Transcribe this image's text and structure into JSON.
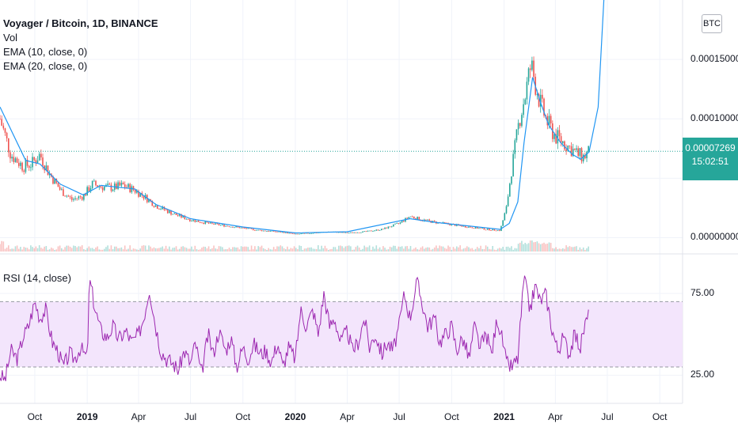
{
  "header": {
    "title": "Voyager / Bitcoin, 1D, BINANCE",
    "indicators": [
      "Vol",
      "EMA (10, close, 0)",
      "EMA (20, close, 0)"
    ]
  },
  "currency_button": "BTC",
  "price_tag": {
    "price": "0.00007269",
    "countdown": "15:02:51"
  },
  "rsi_label": "RSI (14, close)",
  "colors": {
    "up": "#26a69a",
    "down": "#ef5350",
    "ema": "#2196f3",
    "rsi": "#9c27b0",
    "rsi_band": "#f3e5fc",
    "last_price": "#26a69a"
  },
  "chart_data": [
    {
      "type": "line",
      "title": "Voyager / Bitcoin, 1D, BINANCE",
      "x_ticks": [
        "Oct",
        "2019",
        "Apr",
        "Jul",
        "Oct",
        "2020",
        "Apr",
        "Jul",
        "Oct",
        "2021",
        "Apr",
        "Jul",
        "Oct"
      ],
      "y_ticks": [
        "0.00000000",
        "0.00005000",
        "0.00010000",
        "0.00015000"
      ],
      "ylim": [
        -3e-06,
        0.0002
      ],
      "last_price": 7.269e-05,
      "series": [
        {
          "style": "candles",
          "x": [
            "2018-08-01",
            "2018-08-20",
            "2018-09-10",
            "2018-09-25",
            "2018-10-10",
            "2018-10-25",
            "2018-11-15",
            "2018-12-05",
            "2018-12-25",
            "2019-01-10",
            "2019-01-25",
            "2019-02-15",
            "2019-03-05",
            "2019-03-25",
            "2019-04-10",
            "2019-05-01",
            "2019-06-01",
            "2019-07-01",
            "2019-08-01",
            "2019-09-01",
            "2019-10-01",
            "2019-11-01",
            "2019-12-01",
            "2020-01-01",
            "2020-02-01",
            "2020-03-01",
            "2020-04-01",
            "2020-05-01",
            "2020-06-01",
            "2020-07-01",
            "2020-07-20",
            "2020-08-10",
            "2020-09-01",
            "2020-10-01",
            "2020-11-01",
            "2020-12-01",
            "2020-12-25",
            "2021-01-05",
            "2021-01-15",
            "2021-01-28",
            "2021-02-07",
            "2021-02-17",
            "2021-02-25",
            "2021-03-07",
            "2021-03-20",
            "2021-04-01",
            "2021-04-15",
            "2021-04-28",
            "2021-05-10",
            "2021-05-20",
            "2021-05-30"
          ],
          "values": [
            0.0001,
            7e-05,
            6e-05,
            6.2e-05,
            7e-05,
            5.5e-05,
            4e-05,
            3.2e-05,
            3.5e-05,
            4.5e-05,
            4.3e-05,
            4.2e-05,
            4.4e-05,
            4e-05,
            3.5e-05,
            2.7e-05,
            2e-05,
            1.5e-05,
            1.2e-05,
            1e-05,
            8e-06,
            6e-06,
            5e-06,
            3e-06,
            4e-06,
            5e-06,
            4e-06,
            5e-06,
            7e-06,
            1.2e-05,
            1.8e-05,
            1.5e-05,
            1.3e-05,
            1.1e-05,
            9e-06,
            7e-06,
            6e-06,
            2.5e-05,
            6e-05,
            0.0001,
            0.00012,
            0.000145,
            0.00013,
            0.00011,
            9.5e-05,
            8.5e-05,
            8e-05,
            7.5e-05,
            7e-05,
            6.8e-05,
            7.2e-05
          ]
        },
        {
          "name": "EMA (10, close, 0)",
          "x": [
            "2018-08-01",
            "2018-09-15",
            "2018-10-10",
            "2018-11-15",
            "2018-12-25",
            "2019-01-25",
            "2019-03-25",
            "2019-05-01",
            "2019-07-01",
            "2019-10-01",
            "2020-01-01",
            "2020-04-01",
            "2020-07-20",
            "2020-09-01",
            "2020-12-25",
            "2021-01-10",
            "2021-01-25",
            "2021-02-05",
            "2021-02-20",
            "2021-03-05",
            "2021-03-20",
            "2021-04-10",
            "2021-05-01",
            "2021-05-15",
            "2021-05-30",
            "2021-06-15",
            "2021-06-25"
          ],
          "values": [
            0.00011,
            6.5e-05,
            6.2e-05,
            4.5e-05,
            3.6e-05,
            4.4e-05,
            4.1e-05,
            2.8e-05,
            1.6e-05,
            9e-06,
            4e-06,
            5e-06,
            1.6e-05,
            1.3e-05,
            7e-06,
            1.2e-05,
            3e-05,
            8e-05,
            0.000135,
            0.000115,
            9.5e-05,
            8e-05,
            7e-05,
            6.6e-05,
            7.2e-05,
            0.00011,
            0.0002
          ]
        }
      ]
    },
    {
      "type": "line",
      "title": "RSI (14, close)",
      "x_ticks": [
        "Oct",
        "2019",
        "Apr",
        "Jul",
        "Oct",
        "2020",
        "Apr",
        "Jul",
        "Oct",
        "2021",
        "Apr",
        "Jul",
        "Oct"
      ],
      "y_ticks": [
        "25.00",
        "75.00"
      ],
      "ylim": [
        15,
        90
      ],
      "bands": [
        30,
        70
      ],
      "series": [
        {
          "name": "RSI (14, close)",
          "x": [
            "2018-08-01",
            "2018-08-10",
            "2018-08-20",
            "2018-09-01",
            "2018-09-10",
            "2018-09-20",
            "2018-10-01",
            "2018-10-10",
            "2018-10-20",
            "2018-11-01",
            "2018-11-10",
            "2018-11-20",
            "2018-12-01",
            "2018-12-10",
            "2018-12-20",
            "2019-01-01",
            "2019-01-05",
            "2019-01-15",
            "2019-01-25",
            "2019-02-05",
            "2019-02-15",
            "2019-02-25",
            "2019-03-10",
            "2019-03-20",
            "2019-04-01",
            "2019-04-10",
            "2019-04-20",
            "2019-05-01",
            "2019-05-10",
            "2019-05-20",
            "2019-06-01",
            "2019-06-10",
            "2019-06-20",
            "2019-07-01",
            "2019-07-10",
            "2019-07-20",
            "2019-08-01",
            "2019-08-10",
            "2019-08-20",
            "2019-09-01",
            "2019-09-10",
            "2019-09-20",
            "2019-10-01",
            "2019-10-10",
            "2019-10-20",
            "2019-11-01",
            "2019-11-10",
            "2019-11-20",
            "2019-12-01",
            "2019-12-10",
            "2019-12-20",
            "2020-01-01",
            "2020-01-10",
            "2020-01-20",
            "2020-02-01",
            "2020-02-10",
            "2020-02-20",
            "2020-03-01",
            "2020-03-10",
            "2020-03-20",
            "2020-04-01",
            "2020-04-10",
            "2020-04-20",
            "2020-05-01",
            "2020-05-10",
            "2020-05-20",
            "2020-06-01",
            "2020-06-10",
            "2020-06-20",
            "2020-07-01",
            "2020-07-10",
            "2020-07-20",
            "2020-08-01",
            "2020-08-10",
            "2020-08-20",
            "2020-09-01",
            "2020-09-10",
            "2020-09-20",
            "2020-10-01",
            "2020-10-10",
            "2020-10-20",
            "2020-11-01",
            "2020-11-10",
            "2020-11-20",
            "2020-12-01",
            "2020-12-10",
            "2020-12-20",
            "2020-12-30",
            "2021-01-05",
            "2021-01-15",
            "2021-01-25",
            "2021-02-05",
            "2021-02-15",
            "2021-02-25",
            "2021-03-05",
            "2021-03-15",
            "2021-03-25",
            "2021-04-05",
            "2021-04-15",
            "2021-04-25",
            "2021-05-05",
            "2021-05-15",
            "2021-05-22",
            "2021-05-30"
          ],
          "values": [
            25,
            22,
            40,
            35,
            48,
            55,
            70,
            60,
            65,
            45,
            40,
            30,
            38,
            35,
            42,
            35,
            84,
            65,
            52,
            48,
            55,
            47,
            52,
            45,
            50,
            60,
            78,
            55,
            40,
            35,
            32,
            28,
            40,
            32,
            45,
            25,
            50,
            38,
            52,
            40,
            48,
            30,
            42,
            35,
            44,
            38,
            40,
            33,
            45,
            30,
            42,
            35,
            65,
            55,
            65,
            50,
            75,
            55,
            60,
            45,
            52,
            40,
            45,
            60,
            42,
            50,
            38,
            45,
            40,
            55,
            75,
            60,
            82,
            70,
            55,
            60,
            45,
            50,
            55,
            40,
            48,
            35,
            55,
            42,
            50,
            38,
            60,
            45,
            32,
            30,
            35,
            85,
            65,
            80,
            70,
            75,
            55,
            40,
            48,
            38,
            50,
            42,
            55,
            62
          ]
        }
      ]
    }
  ]
}
